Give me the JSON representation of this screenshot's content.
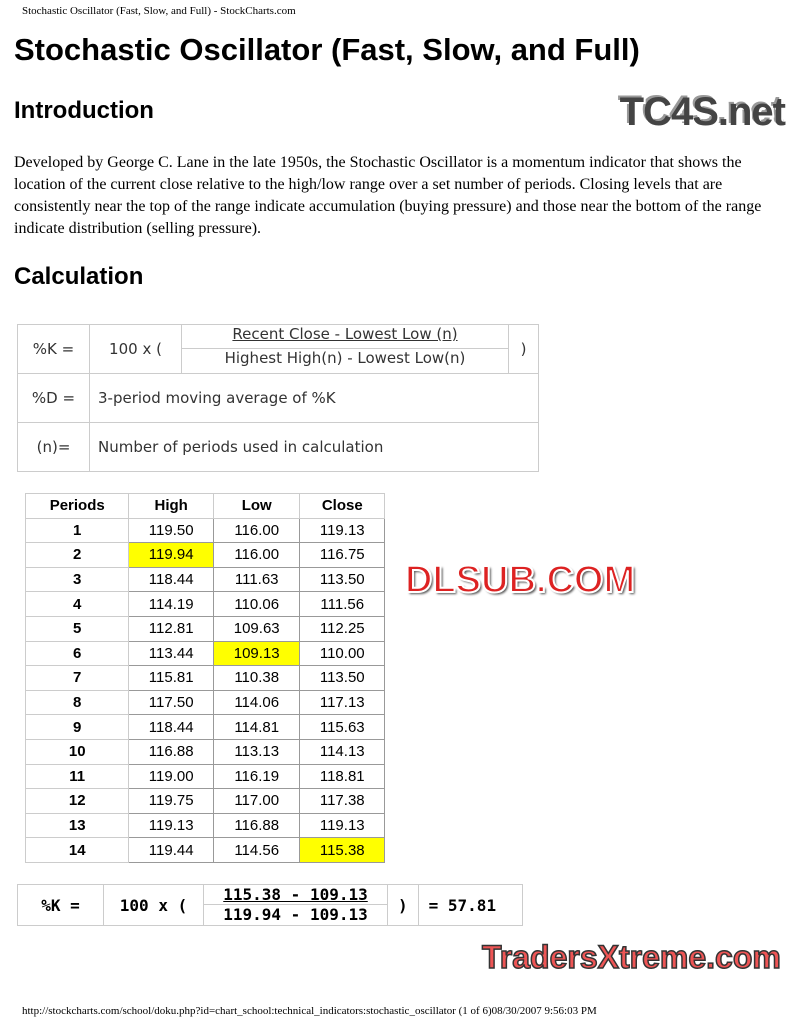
{
  "header": "Stochastic Oscillator (Fast, Slow, and Full) - StockCharts.com",
  "title": "Stochastic Oscillator (Fast, Slow, and Full)",
  "sections": [
    {
      "heading": "Introduction",
      "text": "Developed by George C. Lane in the late 1950s, the Stochastic Oscillator is a momentum indicator that shows the location of the current close relative to the high/low range over a set number of periods. Closing levels that are consistently near the top of the range indicate accumulation (buying pressure) and those near the bottom of the range indicate distribution (selling pressure)."
    },
    {
      "heading": "Calculation"
    }
  ],
  "formula": {
    "k_label": "%K =",
    "mult": "100 x (",
    "numerator": "Recent Close - Lowest Low (n)",
    "denominator": "Highest High(n) - Lowest Low(n)",
    "close": ")",
    "d_label": "%D =",
    "d_text": "3-period moving average of %K",
    "n_label": "(n)=",
    "n_text": "Number of periods used in calculation"
  },
  "table": {
    "headers": [
      "Periods",
      "High",
      "Low",
      "Close"
    ],
    "rows": [
      [
        "1",
        "119.50",
        "116.00",
        "119.13"
      ],
      [
        "2",
        "119.94",
        "116.00",
        "116.75"
      ],
      [
        "3",
        "118.44",
        "111.63",
        "113.50"
      ],
      [
        "4",
        "114.19",
        "110.06",
        "111.56"
      ],
      [
        "5",
        "112.81",
        "109.63",
        "112.25"
      ],
      [
        "6",
        "113.44",
        "109.13",
        "110.00"
      ],
      [
        "7",
        "115.81",
        "110.38",
        "113.50"
      ],
      [
        "8",
        "117.50",
        "114.06",
        "117.13"
      ],
      [
        "9",
        "118.44",
        "114.81",
        "115.63"
      ],
      [
        "10",
        "116.88",
        "113.13",
        "114.13"
      ],
      [
        "11",
        "119.00",
        "116.19",
        "118.81"
      ],
      [
        "12",
        "119.75",
        "117.00",
        "117.38"
      ],
      [
        "13",
        "119.13",
        "116.88",
        "119.13"
      ],
      [
        "14",
        "119.44",
        "114.56",
        "115.38"
      ]
    ],
    "highlights": [
      [
        1,
        1
      ],
      [
        5,
        2
      ],
      [
        13,
        3
      ]
    ],
    "highlight_color": "#ffff00"
  },
  "example": {
    "k_label": "%K =",
    "mult": "100 x (",
    "numerator": "115.38 - 109.13",
    "denominator": "119.94 - 109.13",
    "close": ")",
    "result": "= 57.81"
  },
  "footer": "http://stockcharts.com/school/doku.php?id=chart_school:technical_indicators:stochastic_oscillator  (1 of 6)08/30/2007 9:56:03 PM",
  "watermarks": [
    "TC4S.net",
    "DLSUB.COM",
    "TradersXtreme.com"
  ]
}
